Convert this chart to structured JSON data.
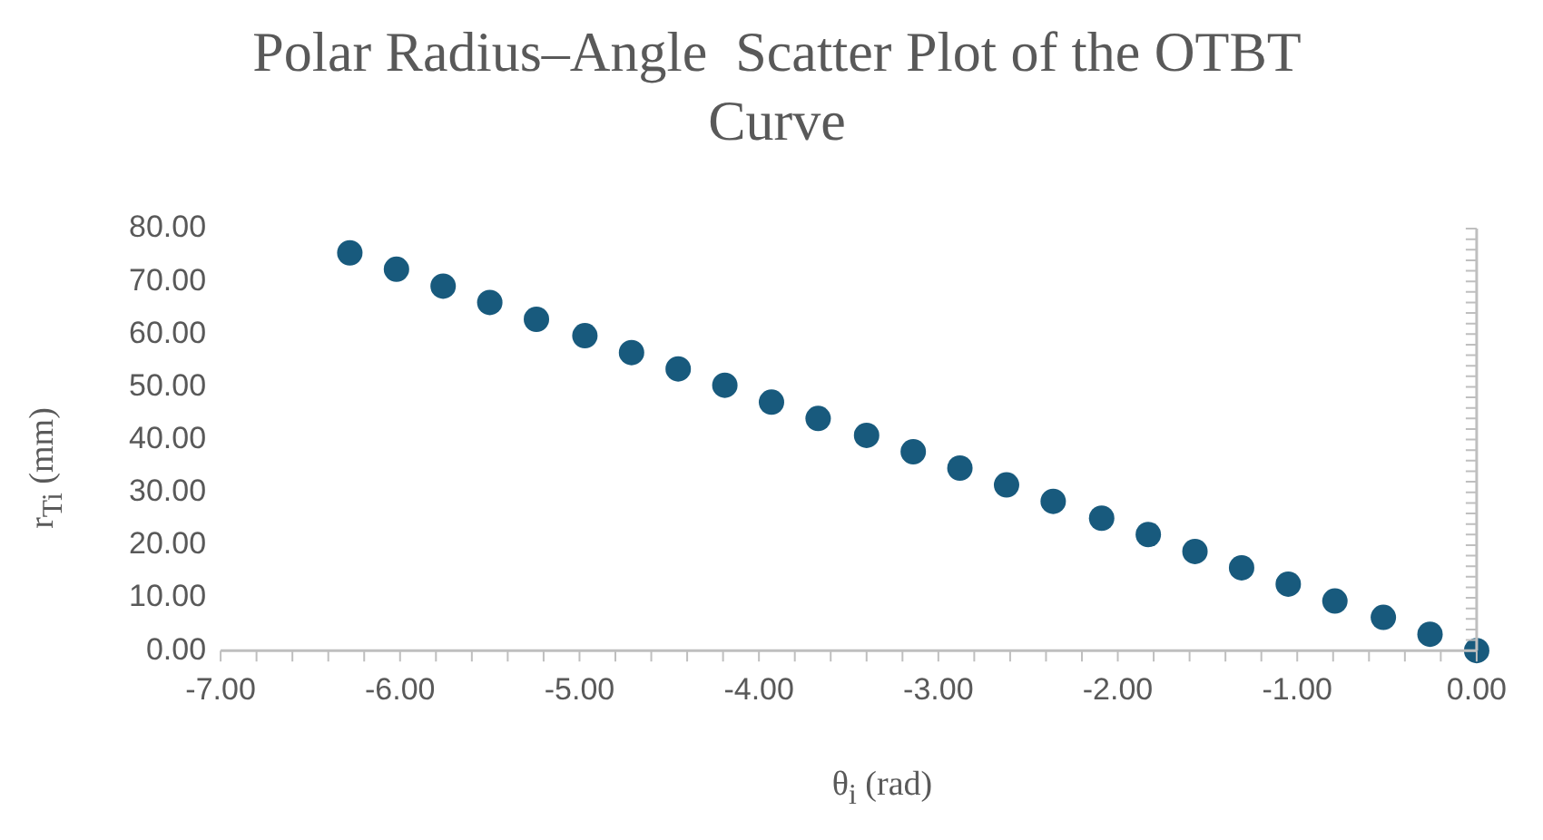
{
  "chart_data": {
    "type": "scatter",
    "title": "Polar Radius–Angle  Scatter Plot of the OTBT Curve",
    "xlabel": "θ$_{i}$ (rad)",
    "ylabel": "r$_{Ti}$ (mm)",
    "x": [
      -6.28,
      -6.02,
      -5.76,
      -5.5,
      -5.24,
      -4.97,
      -4.71,
      -4.45,
      -4.19,
      -3.93,
      -3.67,
      -3.4,
      -3.14,
      -2.88,
      -2.62,
      -2.36,
      -2.09,
      -1.83,
      -1.57,
      -1.31,
      -1.05,
      -0.79,
      -0.52,
      -0.26,
      0
    ],
    "series": [
      {
        "color": "#185a7d",
        "values": [
          75.4,
          72.3,
          69.1,
          66.0,
          62.8,
          59.7,
          56.5,
          53.4,
          50.3,
          47.1,
          44.0,
          40.8,
          37.7,
          34.6,
          31.4,
          28.3,
          25.1,
          22.0,
          18.8,
          15.7,
          12.6,
          9.4,
          6.3,
          3.1,
          0
        ]
      }
    ],
    "xlim": [
      -7,
      0
    ],
    "xticks": [
      {
        "value": -7,
        "label": "-7.00"
      },
      {
        "value": -6,
        "label": "-6.00"
      },
      {
        "value": -5,
        "label": "-5.00"
      },
      {
        "value": -4,
        "label": "-4.00"
      },
      {
        "value": -3,
        "label": "-3.00"
      },
      {
        "value": -2,
        "label": "-2.00"
      },
      {
        "value": -1,
        "label": "-1.00"
      },
      {
        "value": 0,
        "label": "0.00"
      }
    ],
    "ylim": [
      0,
      80
    ],
    "yticks": [
      {
        "value": 0,
        "label": "0.00"
      },
      {
        "value": 10,
        "label": "10.00"
      },
      {
        "value": 20,
        "label": "20.00"
      },
      {
        "value": 30,
        "label": "30.00"
      },
      {
        "value": 40,
        "label": "40.00"
      },
      {
        "value": 50,
        "label": "50.00"
      },
      {
        "value": 60,
        "label": "60.00"
      },
      {
        "value": 70,
        "label": "70.00"
      },
      {
        "value": 80,
        "label": "80.00"
      }
    ],
    "marker": "circle",
    "grid": false,
    "legend": false
  }
}
